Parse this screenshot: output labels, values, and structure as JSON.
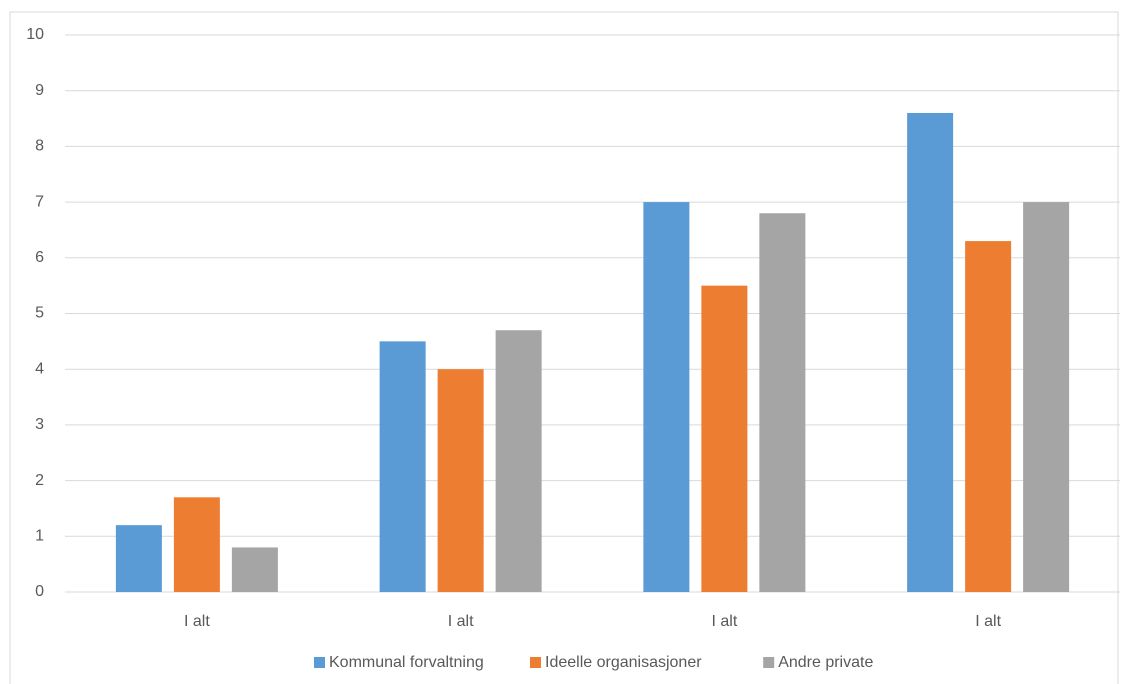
{
  "chart_data": {
    "type": "bar",
    "categories": [
      "I alt",
      "I alt",
      "I alt",
      "I alt"
    ],
    "series": [
      {
        "name": "Kommunal forvaltning",
        "color": "#5b9bd5",
        "values": [
          1.2,
          4.5,
          7.0,
          8.6
        ]
      },
      {
        "name": "Ideelle organisasjoner",
        "color": "#ed7d31",
        "values": [
          1.7,
          4.0,
          5.5,
          6.3
        ]
      },
      {
        "name": "Andre private",
        "color": "#a5a5a5",
        "values": [
          0.8,
          4.7,
          6.8,
          7.0
        ]
      }
    ],
    "ylim": [
      0,
      10
    ],
    "yticks": [
      0,
      1,
      2,
      3,
      4,
      5,
      6,
      7,
      8,
      9,
      10
    ],
    "grid": true,
    "legend": "bottom"
  }
}
